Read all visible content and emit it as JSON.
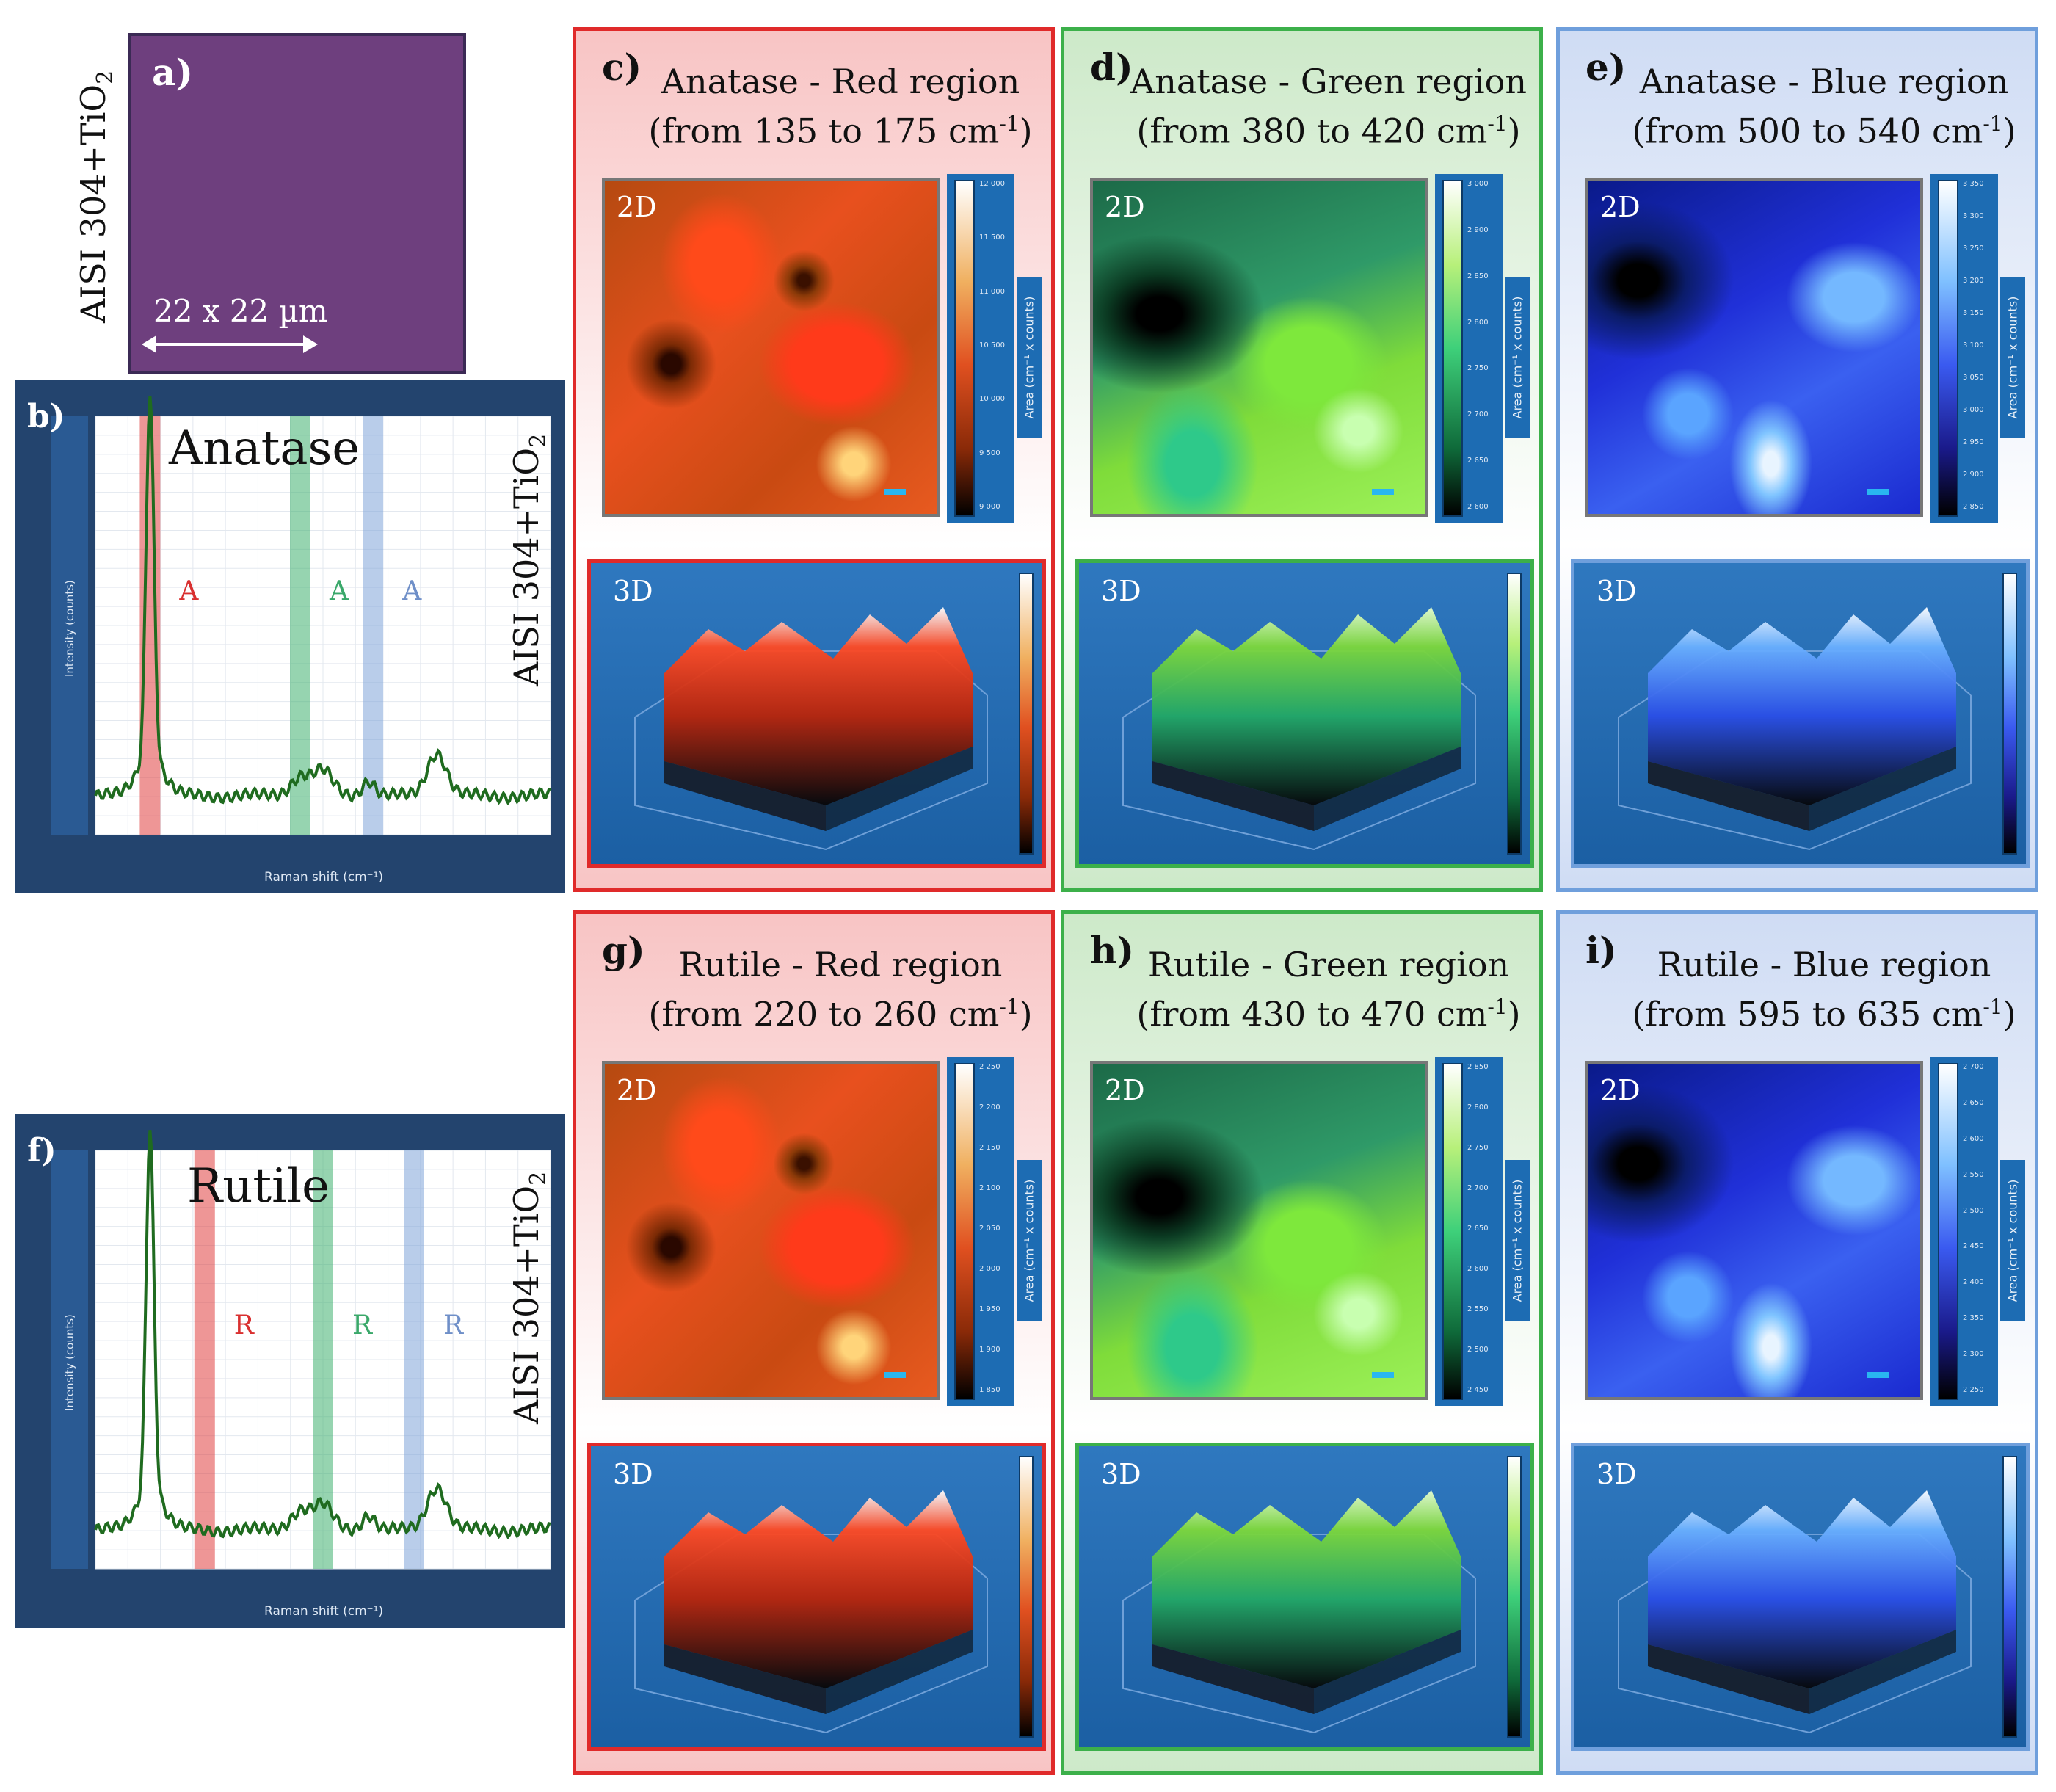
{
  "sample": {
    "label": "a)",
    "side_label": "AISI 304+TiO",
    "side_sub": "2",
    "scale_text": "22 x 22 µm"
  },
  "spectra": [
    {
      "panel": "b)",
      "phase": "Anatase",
      "letter": "A",
      "side_label": "AISI 304+TiO",
      "side_sub": "2",
      "y_label": "Intensity (counts)",
      "x_label": "Raman shift (cm⁻¹)",
      "band_colors": [
        "#e04040",
        "#40b070",
        "#7fa4d8"
      ]
    },
    {
      "panel": "f)",
      "phase": "Rutile",
      "letter": "R",
      "side_label": "AISI 304+TiO",
      "side_sub": "2",
      "y_label": "Intensity (counts)",
      "x_label": "Raman shift (cm⁻¹)",
      "band_colors": [
        "#e04040",
        "#40b070",
        "#7fa4d8"
      ]
    }
  ],
  "maps": [
    {
      "label": "c)",
      "title": "Anatase  - Red region",
      "range": "(from  135 to 175 cm",
      "sup": "-1",
      "close": ")",
      "scheme": "red",
      "ticks": [
        "12 000",
        "11 500",
        "11 000",
        "10 500",
        "10 000",
        "9 500",
        "9 000"
      ]
    },
    {
      "label": "d)",
      "title": "Anatase - Green region",
      "range": "(from 380 to 420 cm",
      "sup": "-1",
      "close": ")",
      "scheme": "green",
      "ticks": [
        "3 000",
        "2 900",
        "2 850",
        "2 800",
        "2 750",
        "2 700",
        "2 650",
        "2 600"
      ]
    },
    {
      "label": "e)",
      "title": "Anatase - Blue region",
      "range": "(from 500 to 540 cm",
      "sup": "-1",
      "close": ")",
      "scheme": "blue",
      "ticks": [
        "3 350",
        "3 300",
        "3 250",
        "3 200",
        "3 150",
        "3 100",
        "3 050",
        "3 000",
        "2 950",
        "2 900",
        "2 850"
      ]
    },
    {
      "label": "g)",
      "title": "Rutile  - Red region",
      "range": "(from  220 to 260 cm",
      "sup": "-1",
      "close": ")",
      "scheme": "red",
      "ticks": [
        "2 250",
        "2 200",
        "2 150",
        "2 100",
        "2 050",
        "2 000",
        "1 950",
        "1 900",
        "1 850"
      ]
    },
    {
      "label": "h)",
      "title": "Rutile - Green region",
      "range": "(from 430 to 470 cm",
      "sup": "-1",
      "close": ")",
      "scheme": "green",
      "ticks": [
        "2 850",
        "2 800",
        "2 750",
        "2 700",
        "2 650",
        "2 600",
        "2 550",
        "2 500",
        "2 450"
      ]
    },
    {
      "label": "i)",
      "title": "Rutile - Blue region",
      "range": "(from 595 to 635 cm",
      "sup": "-1",
      "close": ")",
      "scheme": "blue",
      "ticks": [
        "2 700",
        "2 650",
        "2 600",
        "2 550",
        "2 500",
        "2 450",
        "2 400",
        "2 350",
        "2 300",
        "2 250"
      ]
    }
  ],
  "map_tags": {
    "two_d": "2D",
    "three_d": "3D",
    "cbar_label": "Area (cm⁻¹ x counts)"
  },
  "colors": {
    "red_border": "#e02a2a",
    "green_border": "#3cb04a",
    "blue_border": "#6f9fdc",
    "red_bg": "#f8c4c4",
    "green_bg": "#cde9c9",
    "blue_bg": "#cfdcf4",
    "spectrum_line": "#1f6b1f"
  }
}
